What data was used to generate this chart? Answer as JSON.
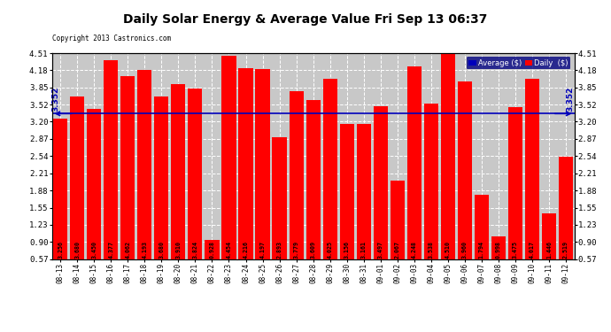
{
  "title": "Daily Solar Energy & Average Value Fri Sep 13 06:37",
  "copyright": "Copyright 2013 Castronics.com",
  "average_value": 3.352,
  "categories": [
    "08-13",
    "08-14",
    "08-15",
    "08-16",
    "08-17",
    "08-18",
    "08-19",
    "08-20",
    "08-21",
    "08-22",
    "08-23",
    "08-24",
    "08-25",
    "08-26",
    "08-27",
    "08-28",
    "08-29",
    "08-30",
    "08-31",
    "09-01",
    "09-02",
    "09-03",
    "09-04",
    "09-05",
    "09-06",
    "09-07",
    "09-08",
    "09-09",
    "09-10",
    "09-11",
    "09-12"
  ],
  "values": [
    3.256,
    3.68,
    3.45,
    4.377,
    4.062,
    4.193,
    3.68,
    3.91,
    3.824,
    0.928,
    4.454,
    4.216,
    4.197,
    2.893,
    3.779,
    3.609,
    4.025,
    3.156,
    3.161,
    3.497,
    2.067,
    4.248,
    3.538,
    4.51,
    3.96,
    1.794,
    0.998,
    3.475,
    4.017,
    1.446,
    2.519
  ],
  "bar_color": "#ff0000",
  "avg_line_color": "#0000bb",
  "background_color": "#ffffff",
  "plot_bg_color": "#c8c8c8",
  "yticks": [
    0.57,
    0.9,
    1.23,
    1.55,
    1.88,
    2.21,
    2.54,
    2.87,
    3.2,
    3.52,
    3.85,
    4.18,
    4.51
  ],
  "ylim_min": 0.57,
  "ylim_max": 4.51,
  "legend_avg_color": "#0000bb",
  "legend_daily_color": "#ff0000",
  "legend_avg_label": "Average ($)",
  "legend_daily_label": "Daily  ($)"
}
